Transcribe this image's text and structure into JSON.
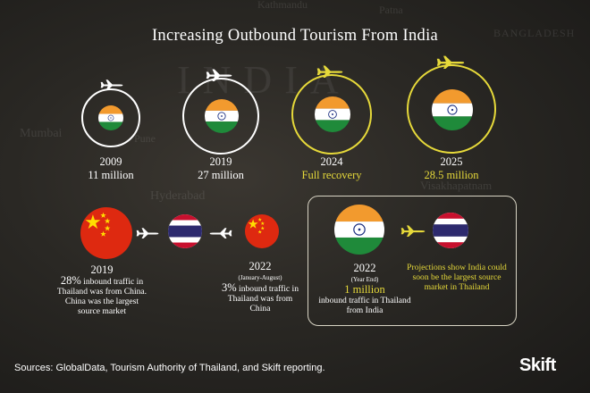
{
  "title": "Increasing Outbound Tourism From India",
  "map_labels": [
    "Kathmandu",
    "Patna",
    "Mumbai",
    "Pune",
    "Hyderabad",
    "Visakhapatnam",
    "BANGLADESH",
    "INDIA"
  ],
  "milestones": [
    {
      "year": "2009",
      "value": "11 million"
    },
    {
      "year": "2019",
      "value": "27 million"
    },
    {
      "year": "2024",
      "value": "Full recovery"
    },
    {
      "year": "2025",
      "value": "28.5 million"
    }
  ],
  "thailand": {
    "china_2019": {
      "year": "2019",
      "percent": "28%",
      "text": "inbound traffic in Thailand was from China. China was the largest source market"
    },
    "china_2022": {
      "year": "2022",
      "period": "(January-August)",
      "percent": "3%",
      "text": "inbound traffic in Thailand was from China"
    },
    "india_2022": {
      "year": "2022",
      "period": "(Year End)",
      "value": "1 million",
      "text": "inbound traffic in Thailand from India"
    },
    "projection": "Projections show India could soon be the largest source market in Thailand"
  },
  "sources": "Sources: GlobalData, Tourism Authority of Thailand, and Skift reporting.",
  "brand": "Skift",
  "colors": {
    "accent_yellow": "#e6d93a",
    "saffron": "#f29a2e",
    "india_green": "#1f8a3a",
    "china_red": "#de2910",
    "thai_blue": "#2d2a6e",
    "thai_red": "#c8102e"
  }
}
